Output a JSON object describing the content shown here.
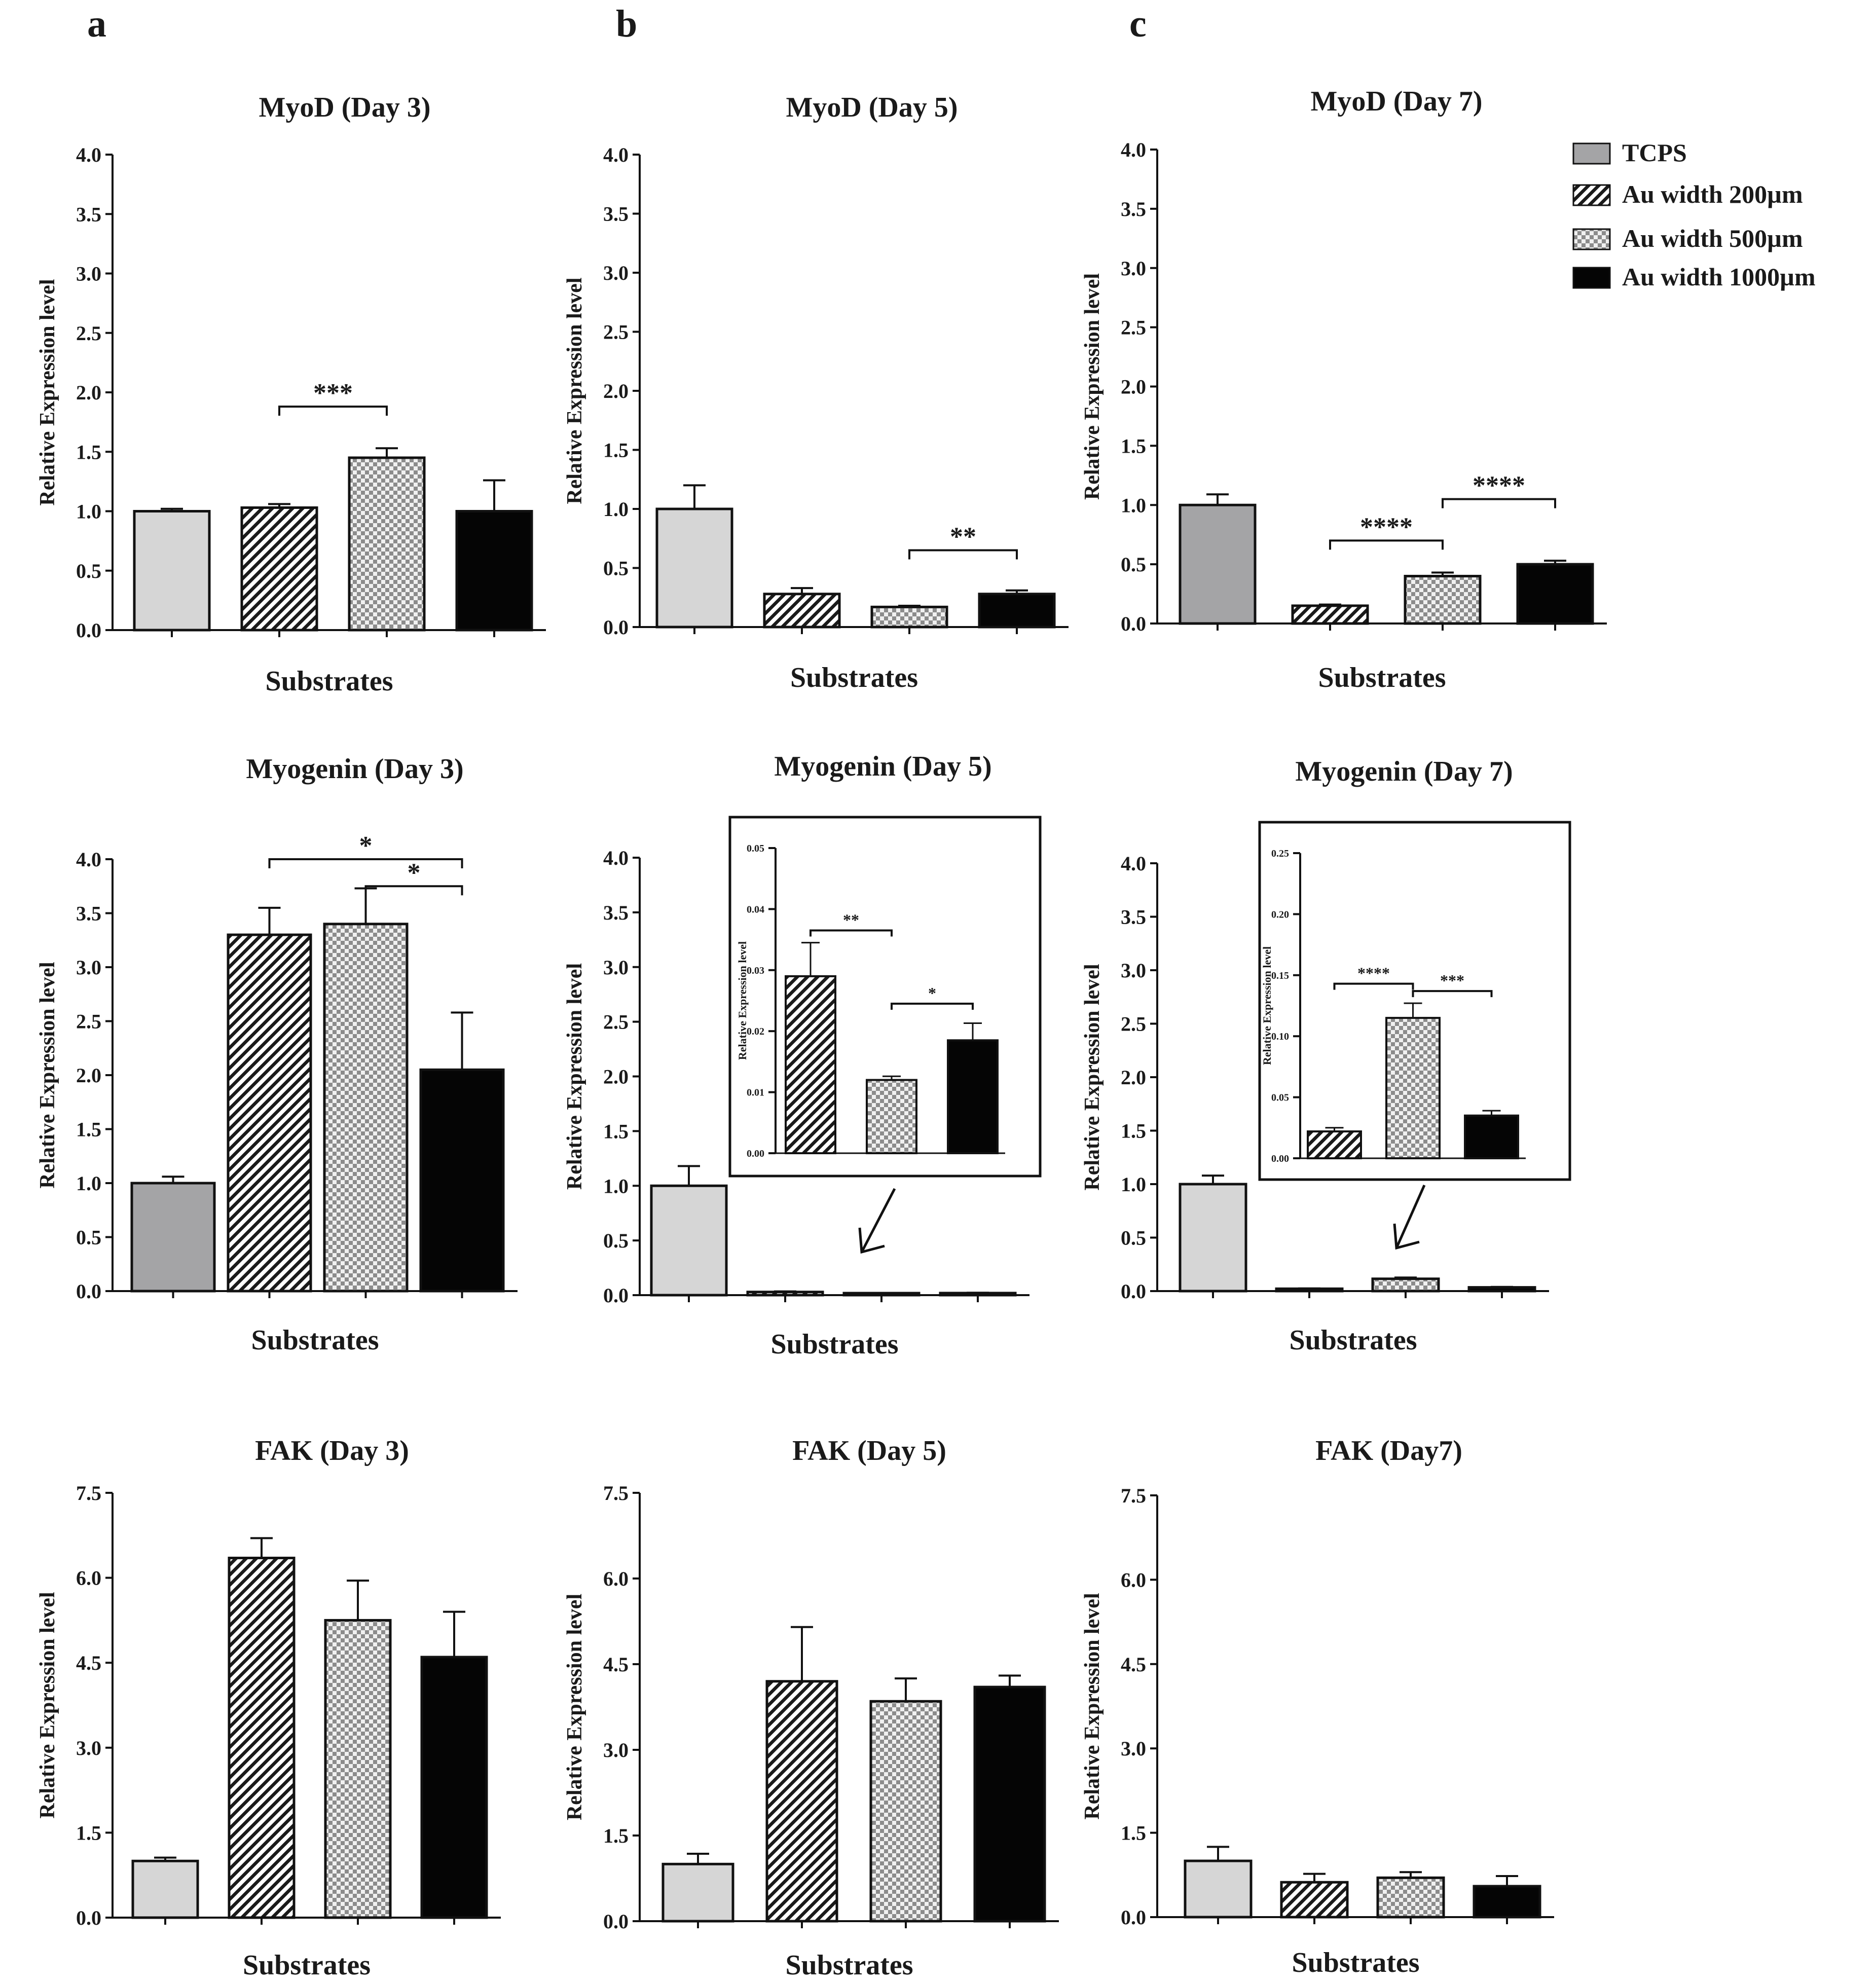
{
  "panel_letters": [
    "a",
    "b",
    "c"
  ],
  "legend": [
    {
      "label": "TCPS",
      "fill": "gray"
    },
    {
      "label": "Au width 200µm",
      "fill": "hatch"
    },
    {
      "label": "Au width 500µm",
      "fill": "check"
    },
    {
      "label": "Au width 1000µm",
      "fill": "black"
    }
  ],
  "colors": {
    "tcps_light": "#d6d6d6",
    "tcps_dark": "#a4a4a6",
    "black": "#050505",
    "axis": "#111111"
  },
  "chart_data": [
    {
      "id": "myod3",
      "type": "bar",
      "title": "MyoD (Day 3)",
      "xlabel": "Substrates",
      "ylabel": "Relative Expression level",
      "ylim": [
        0,
        4.0
      ],
      "ticks": [
        "0.0",
        "0.5",
        "1.0",
        "1.5",
        "2.0",
        "2.5",
        "3.0",
        "3.5",
        "4.0"
      ],
      "categories": [
        "TCPS",
        "Au width 200µm",
        "Au width 500µm",
        "Au width 1000µm"
      ],
      "values": [
        1.0,
        1.03,
        1.45,
        1.0
      ],
      "errors": [
        0.02,
        0.03,
        0.08,
        0.26
      ],
      "annotations": [
        {
          "from": 1,
          "to": 2,
          "label": "***",
          "y": 1.88
        }
      ]
    },
    {
      "id": "myod5",
      "type": "bar",
      "title": "MyoD (Day 5)",
      "xlabel": "Substrates",
      "ylabel": "Relative Expression level",
      "ylim": [
        0,
        4.0
      ],
      "ticks": [
        "0.0",
        "0.5",
        "1.0",
        "1.5",
        "2.0",
        "2.5",
        "3.0",
        "3.5",
        "4.0"
      ],
      "categories": [
        "TCPS",
        "Au width 200µm",
        "Au width 500µm",
        "Au width 1000µm"
      ],
      "values": [
        1.0,
        0.28,
        0.17,
        0.28
      ],
      "errors": [
        0.2,
        0.05,
        0.01,
        0.03
      ],
      "annotations": [
        {
          "from": 2,
          "to": 3,
          "label": "**",
          "y": 0.65
        }
      ]
    },
    {
      "id": "myod7",
      "type": "bar",
      "title": "MyoD (Day 7)",
      "xlabel": "Substrates",
      "ylabel": "Relative Expression level",
      "ylim": [
        0,
        4.0
      ],
      "ticks": [
        "0.0",
        "0.5",
        "1.0",
        "1.5",
        "2.0",
        "2.5",
        "3.0",
        "3.5",
        "4.0"
      ],
      "categories": [
        "TCPS",
        "Au width 200µm",
        "Au width 500µm",
        "Au width 1000µm"
      ],
      "values": [
        1.0,
        0.15,
        0.4,
        0.5
      ],
      "errors": [
        0.09,
        0.01,
        0.03,
        0.03
      ],
      "annotations": [
        {
          "from": 1,
          "to": 2,
          "label": "****",
          "y": 0.7
        },
        {
          "from": 2,
          "to": 3,
          "label": "****",
          "y": 1.05
        }
      ]
    },
    {
      "id": "myog3",
      "type": "bar",
      "title": "Myogenin (Day 3)",
      "xlabel": "Substrates",
      "ylabel": "Relative Expression level",
      "ylim": [
        0,
        4.0
      ],
      "ticks": [
        "0.0",
        "0.5",
        "1.0",
        "1.5",
        "2.0",
        "2.5",
        "3.0",
        "3.5",
        "4.0"
      ],
      "categories": [
        "TCPS",
        "Au width 200µm",
        "Au width 500µm",
        "Au width 1000µm"
      ],
      "values": [
        1.0,
        3.3,
        3.4,
        2.05
      ],
      "errors": [
        0.06,
        0.25,
        0.33,
        0.53
      ],
      "annotations": [
        {
          "from": 1,
          "to": 3,
          "label": "*",
          "y": 4.0
        },
        {
          "from": 2,
          "to": 3,
          "label": "*",
          "y": 3.75
        }
      ]
    },
    {
      "id": "myog5",
      "type": "bar",
      "title": "Myogenin (Day 5)",
      "xlabel": "Substrates",
      "ylabel": "Relative Expression level",
      "ylim": [
        0,
        4.0
      ],
      "ticks": [
        "0.0",
        "0.5",
        "1.0",
        "1.5",
        "2.0",
        "2.5",
        "3.0",
        "3.5",
        "4.0"
      ],
      "categories": [
        "TCPS",
        "Au width 200µm",
        "Au width 500µm",
        "Au width 1000µm"
      ],
      "values": [
        1.0,
        0.029,
        0.012,
        0.019
      ],
      "errors": [
        0.18,
        0.005,
        0.001,
        0.003
      ],
      "annotations": [],
      "inset": {
        "ylim": [
          0,
          0.05
        ],
        "ylabel": "Relative Expression level",
        "ticks": [
          "0.00",
          "0.01",
          "0.02",
          "0.03",
          "0.04",
          "0.05"
        ],
        "values": [
          0.029,
          0.012,
          0.0185
        ],
        "errors": [
          0.0055,
          0.0006,
          0.0028
        ],
        "annotations": [
          {
            "from": 0,
            "to": 1,
            "label": "**",
            "y": 0.0365
          },
          {
            "from": 1,
            "to": 2,
            "label": "*",
            "y": 0.0245
          }
        ]
      }
    },
    {
      "id": "myog7",
      "type": "bar",
      "title": "Myogenin (Day 7)",
      "xlabel": "Substrates",
      "ylabel": "Relative Expression level",
      "ylim": [
        0,
        4.0
      ],
      "ticks": [
        "0.0",
        "0.5",
        "1.0",
        "1.5",
        "2.0",
        "2.5",
        "3.0",
        "3.5",
        "4.0"
      ],
      "categories": [
        "TCPS",
        "Au width 200µm",
        "Au width 500µm",
        "Au width 1000µm"
      ],
      "values": [
        1.0,
        0.022,
        0.115,
        0.035
      ],
      "errors": [
        0.08,
        0.003,
        0.012,
        0.004
      ],
      "annotations": [],
      "inset": {
        "ylim": [
          0,
          0.25
        ],
        "ylabel": "Relative Expression level",
        "ticks": [
          "0.00",
          "0.05",
          "0.10",
          "0.15",
          "0.20",
          "0.25"
        ],
        "values": [
          0.022,
          0.115,
          0.035
        ],
        "errors": [
          0.003,
          0.012,
          0.004
        ],
        "annotations": [
          {
            "from": 0,
            "to": 1,
            "label": "****",
            "y": 0.143
          },
          {
            "from": 1,
            "to": 2,
            "label": "***",
            "y": 0.137
          }
        ]
      }
    },
    {
      "id": "fak3",
      "type": "bar",
      "title": "FAK (Day 3)",
      "xlabel": "Substrates",
      "ylabel": "Relative Expression level",
      "ylim": [
        0,
        7.5
      ],
      "ticks": [
        "0.0",
        "1.5",
        "3.0",
        "4.5",
        "6.0",
        "7.5"
      ],
      "categories": [
        "TCPS",
        "Au width 200µm",
        "Au width 500µm",
        "Au width 1000µm"
      ],
      "values": [
        1.0,
        6.35,
        5.25,
        4.6
      ],
      "errors": [
        0.06,
        0.35,
        0.7,
        0.8
      ],
      "annotations": []
    },
    {
      "id": "fak5",
      "type": "bar",
      "title": "FAK (Day 5)",
      "xlabel": "Substrates",
      "ylabel": "Relative Expression level",
      "ylim": [
        0,
        7.5
      ],
      "ticks": [
        "0.0",
        "1.5",
        "3.0",
        "4.5",
        "6.0",
        "7.5"
      ],
      "categories": [
        "TCPS",
        "Au width 200µm",
        "Au width 500µm",
        "Au width 1000µm"
      ],
      "values": [
        1.0,
        4.2,
        3.85,
        4.1
      ],
      "errors": [
        0.18,
        0.95,
        0.4,
        0.2
      ],
      "annotations": []
    },
    {
      "id": "fak7",
      "type": "bar",
      "title": "FAK (Day7)",
      "xlabel": "Substrates",
      "ylabel": "Relative Expression level",
      "ylim": [
        0,
        7.5
      ],
      "ticks": [
        "0.0",
        "1.5",
        "3.0",
        "4.5",
        "6.0",
        "7.5"
      ],
      "categories": [
        "TCPS",
        "Au width 200µm",
        "Au width 500µm",
        "Au width 1000µm"
      ],
      "values": [
        1.0,
        0.62,
        0.7,
        0.55
      ],
      "errors": [
        0.25,
        0.15,
        0.1,
        0.18
      ],
      "annotations": []
    }
  ]
}
